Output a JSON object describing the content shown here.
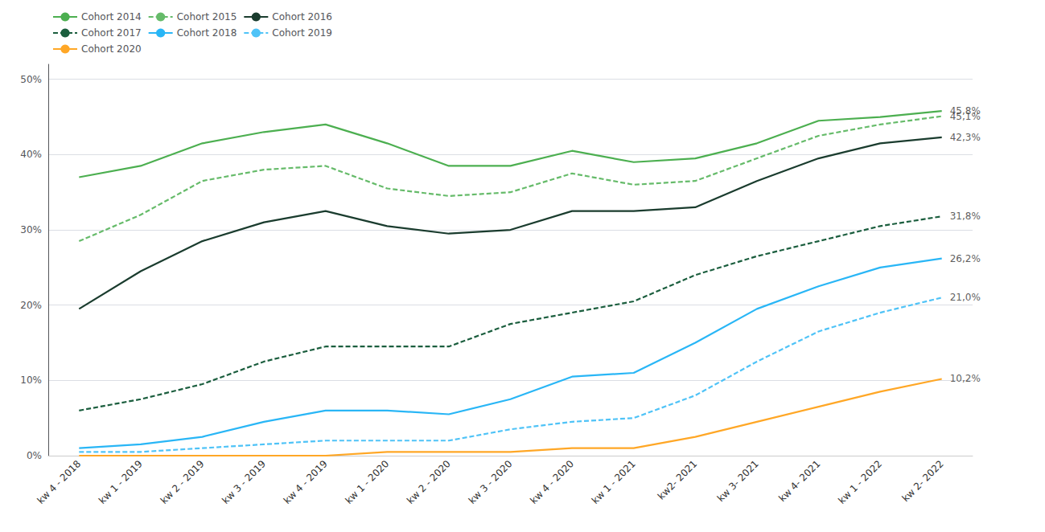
{
  "chart_data": {
    "type": "line",
    "categories": [
      "kw 4 - 2018",
      "kw 1 - 2019",
      "kw 2 - 2019",
      "kw 3 - 2019",
      "kw 4 - 2019",
      "kw 1 - 2020",
      "kw 2 - 2020",
      "kw 3 - 2020",
      "kw 4 - 2020",
      "kw 1 - 2021",
      "kw2- 2021",
      "kw 3- 2021",
      "kw 4- 2021",
      "kw 1 - 2022",
      "kw 2- 2022"
    ],
    "series": [
      {
        "name": "Cohort 2014",
        "color": "#4caf50",
        "line_style": "solid",
        "values": [
          37.0,
          38.5,
          41.5,
          43.0,
          44.0,
          41.5,
          38.5,
          38.5,
          40.5,
          39.0,
          39.5,
          41.5,
          44.5,
          45.0,
          45.8
        ]
      },
      {
        "name": "Cohort 2015",
        "color": "#66bb6a",
        "line_style": "dashed",
        "values": [
          28.5,
          32.0,
          36.5,
          38.0,
          38.5,
          35.5,
          34.5,
          35.0,
          37.5,
          36.0,
          36.5,
          39.5,
          42.5,
          44.0,
          45.1
        ]
      },
      {
        "name": "Cohort 2016",
        "color": "#1a3c2e",
        "line_style": "solid",
        "values": [
          19.5,
          24.5,
          28.5,
          31.0,
          32.5,
          30.5,
          29.5,
          30.0,
          32.5,
          32.5,
          33.0,
          36.5,
          39.5,
          41.5,
          42.3
        ]
      },
      {
        "name": "Cohort 2017",
        "color": "#1b5e3e",
        "line_style": "dashed",
        "values": [
          6.0,
          7.5,
          9.5,
          12.5,
          14.5,
          14.5,
          14.5,
          17.5,
          19.0,
          20.5,
          24.0,
          26.5,
          28.5,
          30.5,
          31.8
        ]
      },
      {
        "name": "Cohort 2018",
        "color": "#29b6f6",
        "line_style": "solid",
        "values": [
          1.0,
          1.5,
          2.5,
          4.5,
          6.0,
          6.0,
          5.5,
          7.5,
          10.5,
          11.0,
          15.0,
          19.5,
          22.5,
          25.0,
          26.2
        ]
      },
      {
        "name": "Cohort 2019",
        "color": "#4fc3f7",
        "line_style": "dashed",
        "values": [
          0.5,
          0.5,
          1.0,
          1.5,
          2.0,
          2.0,
          2.0,
          3.5,
          4.5,
          5.0,
          8.0,
          12.5,
          16.5,
          19.0,
          21.0
        ]
      },
      {
        "name": "Cohort 2020",
        "color": "#ffa726",
        "line_style": "solid",
        "values": [
          0.0,
          0.0,
          0.0,
          0.0,
          0.0,
          0.5,
          0.5,
          0.5,
          1.0,
          1.0,
          2.5,
          4.5,
          6.5,
          8.5,
          10.2
        ]
      }
    ],
    "annotations": [
      {
        "text": "45,8%",
        "x": "kw 2- 2022",
        "y": 45.8
      },
      {
        "text": "45,1%",
        "x": "kw 2- 2022",
        "y": 45.1
      },
      {
        "text": "42,3%",
        "x": "kw 2- 2022",
        "y": 42.3
      },
      {
        "text": "31,8%",
        "x": "kw 2- 2022",
        "y": 31.8
      },
      {
        "text": "26,2%",
        "x": "kw 2- 2022",
        "y": 26.2
      },
      {
        "text": "21,0%",
        "x": "kw 2- 2022",
        "y": 21.0
      },
      {
        "text": "10,2%",
        "x": "kw 2- 2022",
        "y": 10.2
      }
    ],
    "ylim": [
      0,
      52
    ],
    "yticks": [
      {
        "value": 0,
        "label": "0%"
      },
      {
        "value": 10,
        "label": "10%"
      },
      {
        "value": 20,
        "label": "20%"
      },
      {
        "value": 30,
        "label": "30%"
      },
      {
        "value": 40,
        "label": "40%"
      },
      {
        "value": 50,
        "label": "50%"
      }
    ],
    "grid": true,
    "legend": "upper left"
  }
}
